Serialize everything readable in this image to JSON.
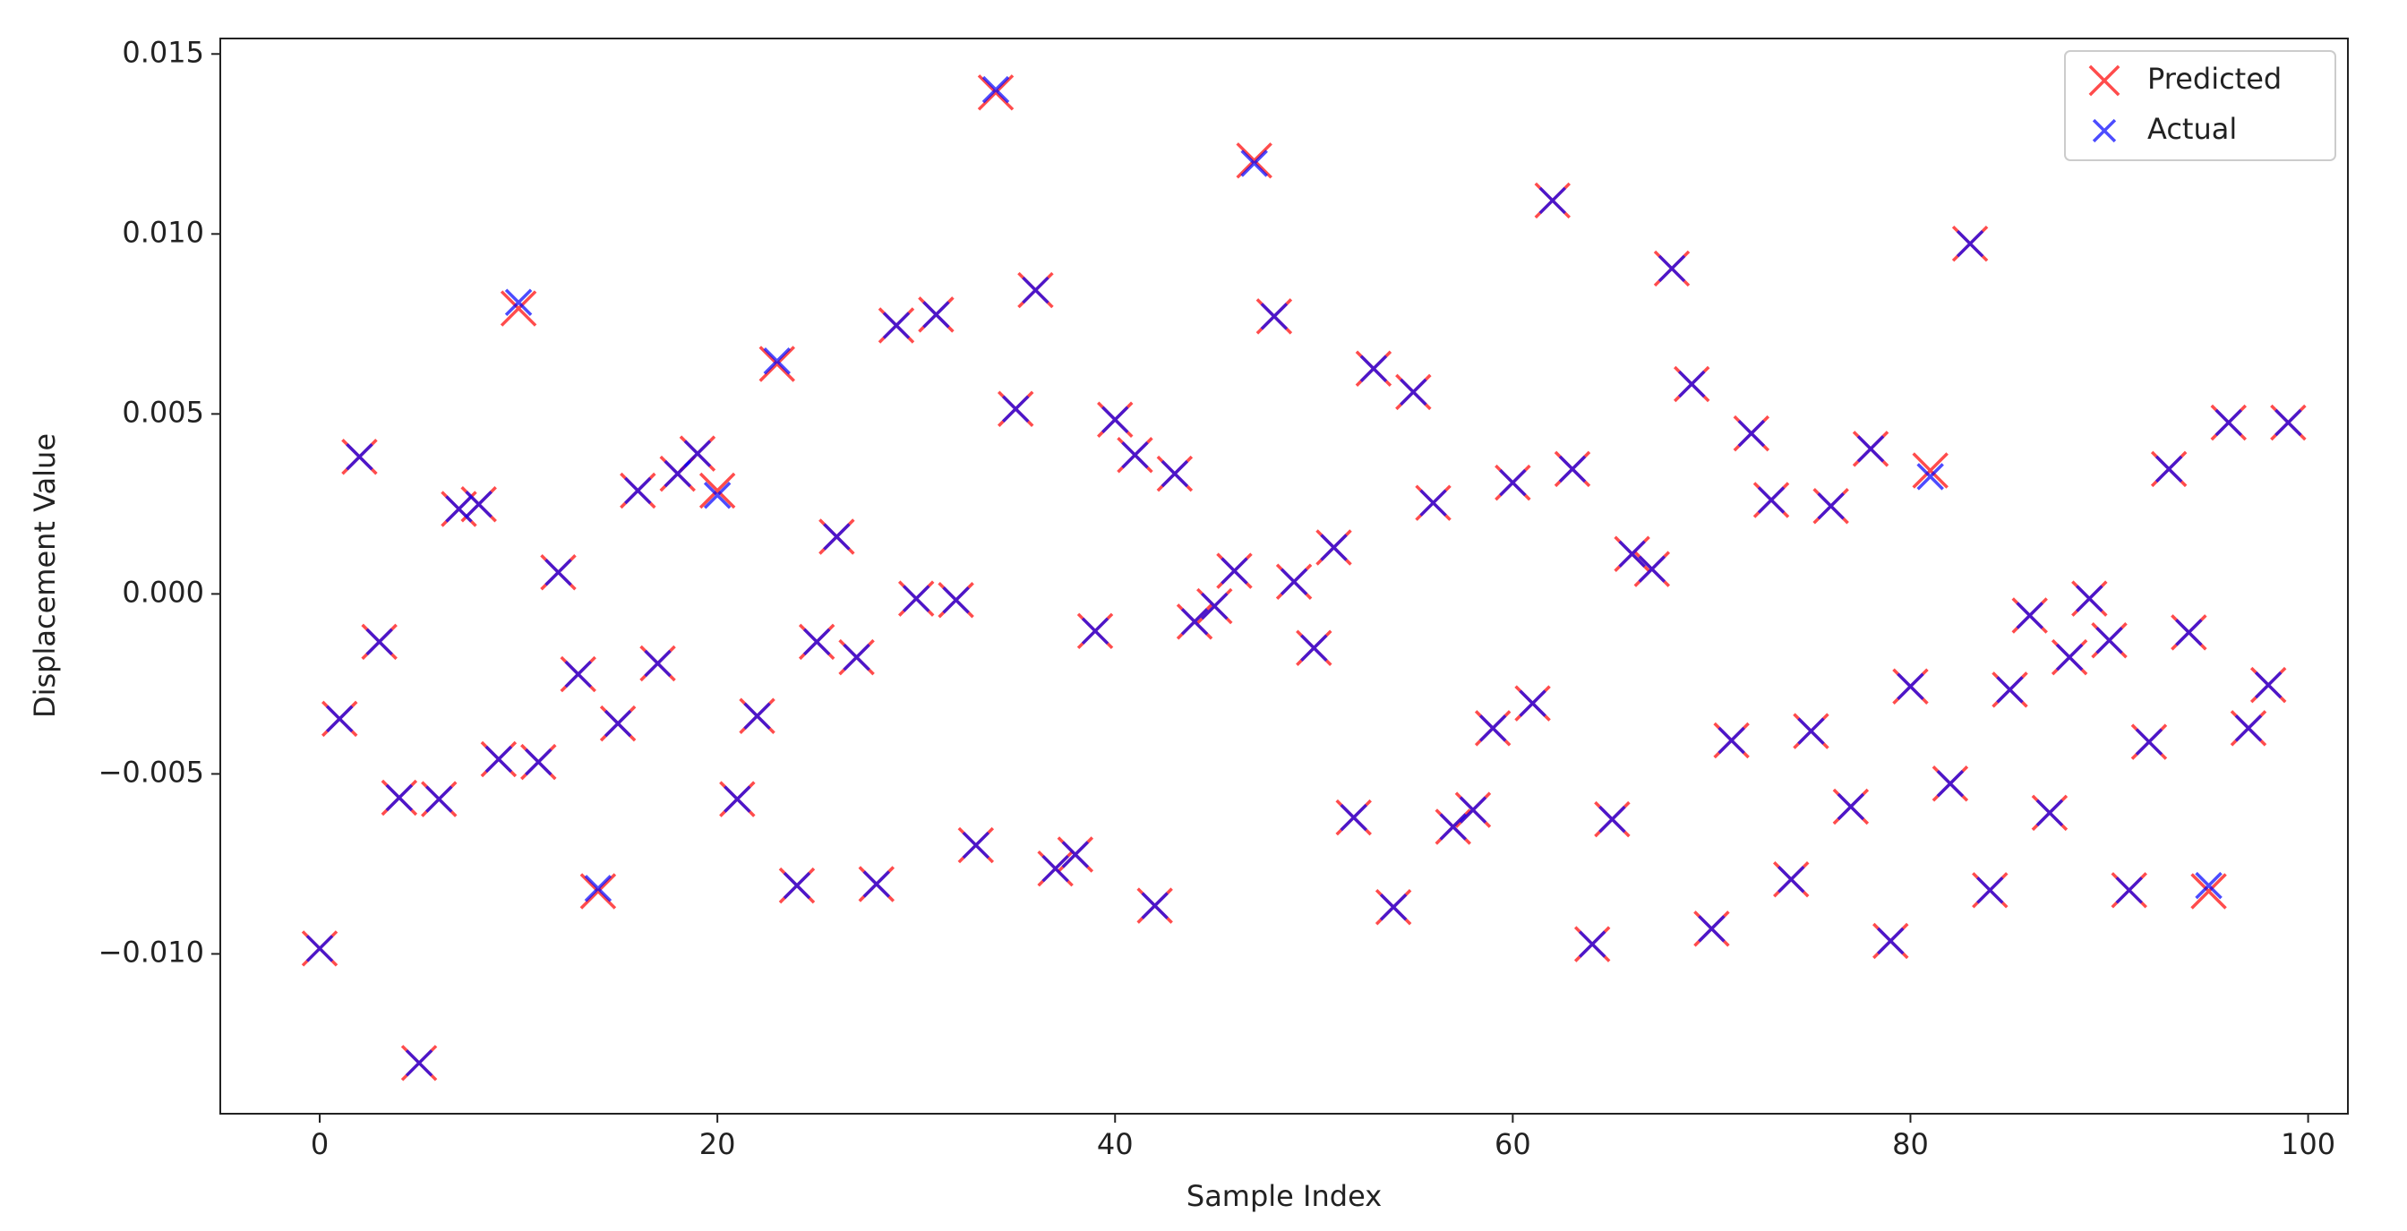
{
  "chart_data": {
    "type": "scatter",
    "xlabel": "Sample Index",
    "ylabel": "Displacement Value",
    "xlim": [
      -5,
      102
    ],
    "ylim": [
      -0.01444,
      0.01543
    ],
    "xticks": [
      0,
      20,
      40,
      60,
      80,
      100
    ],
    "yticks": [
      {
        "value": -0.01,
        "label": "−0.010"
      },
      {
        "value": -0.005,
        "label": "−0.005"
      },
      {
        "value": 0,
        "label": "0.000"
      },
      {
        "value": 0.005,
        "label": "0.005"
      },
      {
        "value": 0.01,
        "label": "0.010"
      },
      {
        "value": 0.015,
        "label": "0.015"
      }
    ],
    "grid": false,
    "legend": "upper right",
    "x": [
      0,
      1,
      2,
      3,
      4,
      5,
      6,
      7,
      8,
      9,
      10,
      11,
      12,
      13,
      14,
      15,
      16,
      17,
      18,
      19,
      20,
      21,
      22,
      23,
      24,
      25,
      26,
      27,
      28,
      29,
      30,
      31,
      32,
      33,
      34,
      35,
      36,
      37,
      38,
      39,
      40,
      41,
      42,
      43,
      44,
      45,
      46,
      47,
      48,
      49,
      50,
      51,
      52,
      53,
      54,
      55,
      56,
      57,
      58,
      59,
      60,
      61,
      62,
      63,
      64,
      65,
      66,
      67,
      68,
      69,
      70,
      71,
      72,
      73,
      74,
      75,
      76,
      77,
      78,
      79,
      80,
      81,
      82,
      83,
      84,
      85,
      86,
      87,
      88,
      89,
      90,
      91,
      92,
      93,
      94,
      95,
      96,
      97,
      98,
      99
    ],
    "series": [
      {
        "name": "Predicted",
        "color": "#ff0000",
        "size": 19,
        "values": [
          -0.00985,
          -0.00347,
          0.00381,
          -0.00133,
          -0.00566,
          -0.01303,
          -0.0057,
          0.00236,
          0.00249,
          -0.00459,
          0.00793,
          -0.00467,
          0.0006,
          -0.00223,
          -0.00826,
          -0.0036,
          0.00287,
          -0.00193,
          0.00334,
          0.0039,
          0.00287,
          -0.0057,
          -0.00339,
          0.00639,
          -0.0081,
          -0.00133,
          0.00159,
          -0.00176,
          -0.00806,
          0.00746,
          -0.00013,
          0.00776,
          -0.00017,
          -0.00698,
          0.01393,
          0.00514,
          0.00844,
          -0.00763,
          -0.00724,
          -0.00103,
          0.00484,
          0.00386,
          -0.00866,
          0.00334,
          -0.00077,
          -0.00034,
          0.00064,
          0.01204,
          0.00771,
          0.00034,
          -0.0015,
          0.00129,
          -0.00621,
          0.00626,
          -0.0087,
          0.00561,
          0.00253,
          -0.00647,
          -0.006,
          -0.00373,
          0.00309,
          -0.00304,
          0.01093,
          0.00347,
          -0.00973,
          -0.00626,
          0.00111,
          0.00069,
          0.00904,
          0.00583,
          -0.0093,
          -0.00407,
          0.00446,
          0.00261,
          -0.00793,
          -0.00381,
          0.00244,
          -0.00591,
          0.00403,
          -0.00964,
          -0.00257,
          0.00343,
          -0.00527,
          0.00973,
          -0.00823,
          -0.00266,
          -0.0006,
          -0.00608,
          -0.00176,
          -0.00013,
          -0.00129,
          -0.00823,
          -0.00411,
          0.00347,
          -0.00107,
          -0.00826,
          0.00476,
          -0.00373,
          -0.00253,
          0.00476
        ]
      },
      {
        "name": "Actual",
        "color": "#0000ff",
        "size": 14,
        "values": [
          -0.00985,
          -0.00347,
          0.00381,
          -0.00133,
          -0.00566,
          -0.01303,
          -0.0057,
          0.00236,
          0.00249,
          -0.00459,
          0.0081,
          -0.00467,
          0.0006,
          -0.00223,
          -0.00818,
          -0.0036,
          0.00287,
          -0.00193,
          0.00334,
          0.0039,
          0.00274,
          -0.0057,
          -0.00339,
          0.00647,
          -0.0081,
          -0.00133,
          0.00159,
          -0.00176,
          -0.00806,
          0.00746,
          -0.00013,
          0.00776,
          -0.00017,
          -0.00698,
          0.01401,
          0.00514,
          0.00844,
          -0.00763,
          -0.00724,
          -0.00103,
          0.00484,
          0.00386,
          -0.00866,
          0.00334,
          -0.00077,
          -0.00034,
          0.00064,
          0.01196,
          0.00771,
          0.00034,
          -0.0015,
          0.00129,
          -0.00621,
          0.00626,
          -0.0087,
          0.00561,
          0.00253,
          -0.00647,
          -0.006,
          -0.00373,
          0.00309,
          -0.00304,
          0.01093,
          0.00347,
          -0.00973,
          -0.00626,
          0.00111,
          0.00069,
          0.00904,
          0.00583,
          -0.0093,
          -0.00407,
          0.00446,
          0.00261,
          -0.00793,
          -0.00381,
          0.00244,
          -0.00591,
          0.00403,
          -0.00964,
          -0.00257,
          0.00326,
          -0.00527,
          0.00973,
          -0.00823,
          -0.00266,
          -0.0006,
          -0.00608,
          -0.00176,
          -0.00013,
          -0.00129,
          -0.00823,
          -0.00411,
          0.00347,
          -0.00107,
          -0.0081,
          0.00476,
          -0.00373,
          -0.00253,
          0.00476
        ]
      }
    ]
  }
}
